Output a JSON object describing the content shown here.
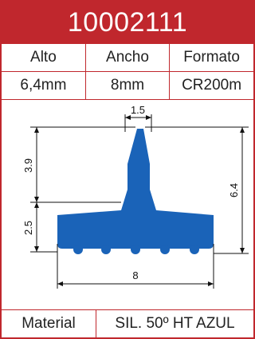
{
  "product": {
    "code": "10002111"
  },
  "specs": {
    "headers": [
      "Alto",
      "Ancho",
      "Formato"
    ],
    "values": [
      "6,4mm",
      "8mm",
      "CR200m"
    ]
  },
  "drawing": {
    "top_width_label": "1.5",
    "upper_height_label": "3.9",
    "lower_height_label": "2.5",
    "total_height_label": "6.4",
    "base_width_label": "8",
    "profile_color": "#1a63b8"
  },
  "material": {
    "label": "Material",
    "value": "SIL. 50º HT AZUL"
  },
  "colors": {
    "accent": "#c0272d",
    "profile": "#1a63b8"
  }
}
